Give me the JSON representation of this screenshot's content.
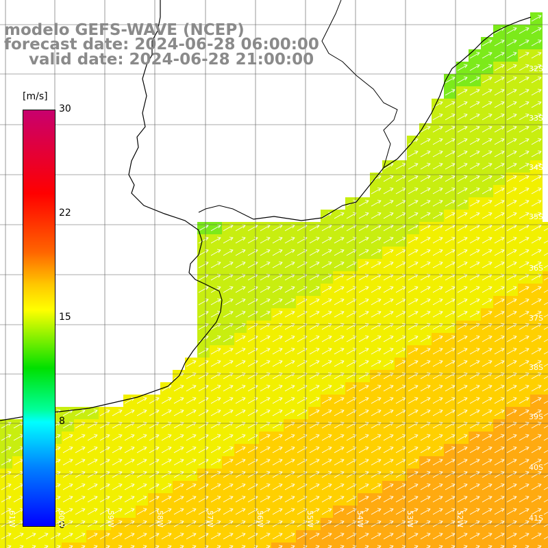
{
  "title": {
    "line1": "modelo GEFS-WAVE (NCEP)",
    "line2": "forecast date: 2024-06-28 06:00:00",
    "line3": "valid date: 2024-06-28 21:00:00"
  },
  "colorbar": {
    "units": "[m/s]",
    "ticks": [
      "30",
      "22",
      "15",
      "8",
      "0"
    ],
    "min": 0,
    "max": 30
  },
  "latitude_labels": [
    "32S",
    "33S",
    "34S",
    "35S",
    "36S",
    "37S",
    "38S",
    "39S",
    "40S",
    "41S"
  ],
  "longitude_labels": [
    "61W",
    "60W",
    "59W",
    "58W",
    "57W",
    "56W",
    "55W",
    "54W",
    "53W",
    "52W"
  ],
  "colors": {
    "coast": "#000000",
    "grid": "#333333",
    "arrow": "#ffffff",
    "title": "#8a8a8a"
  }
}
